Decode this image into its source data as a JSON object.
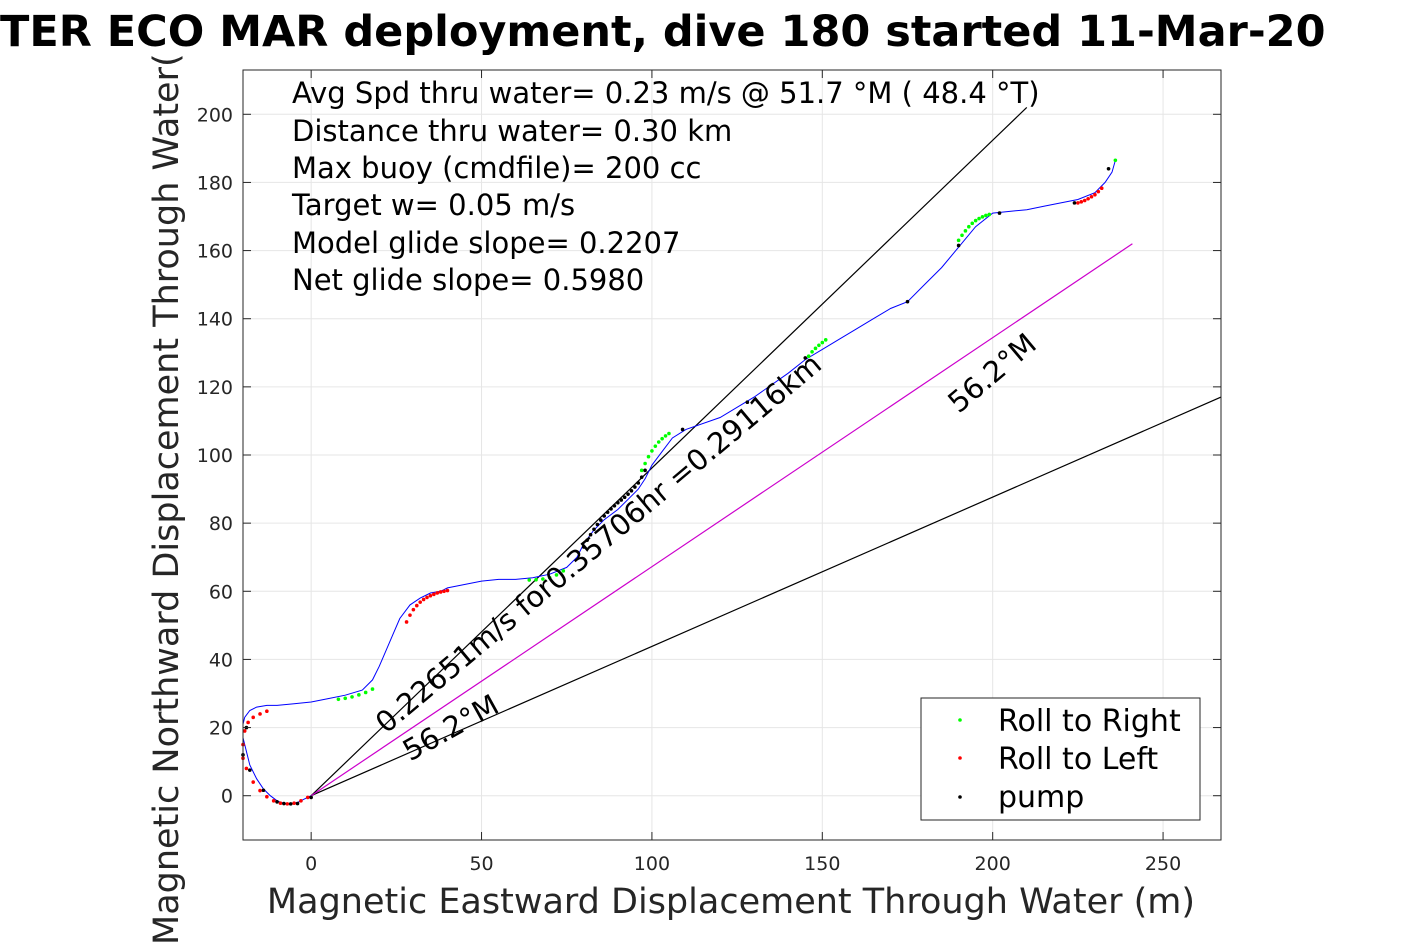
{
  "chart_data": {
    "type": "line",
    "title": "TER ECO MAR deployment, dive 180 started 11-Mar-20",
    "xlabel": "Magnetic Eastward Displacement Through Water (m)",
    "ylabel": "Magnetic Northward Displacement Through Water(",
    "xlim": [
      -20,
      267
    ],
    "ylim": [
      -13,
      213
    ],
    "xticks": [
      0,
      50,
      100,
      150,
      200,
      250
    ],
    "yticks": [
      0,
      20,
      40,
      60,
      80,
      100,
      120,
      140,
      160,
      180,
      200
    ],
    "grid": true,
    "box": true,
    "stats_lines": [
      "Avg Spd thru water=  0.23 m/s @  51.7 °M ( 48.4 °T)",
      "Distance thru water=  0.30 km",
      "Max buoy (cmdfile)= 200 cc",
      "Target w= 0.05 m/s",
      "Model glide slope= 0.2207",
      "Net glide slope= 0.5980"
    ],
    "annotations": [
      {
        "text": "0.22651m/s for0.35706hr =0.29116km",
        "x": 22,
        "y": 18,
        "angle_deg": 40
      },
      {
        "text": "56.2°M",
        "x": 29,
        "y": 10,
        "angle_deg": 29
      },
      {
        "text": "56.2°M",
        "x": 190,
        "y": 112,
        "angle_deg": 40
      }
    ],
    "reference_lines": [
      {
        "name": "track heading",
        "color": "#000000",
        "x": [
          0,
          210
        ],
        "y": [
          0,
          202
        ]
      },
      {
        "name": "net displacement",
        "color": "#000000",
        "x": [
          0,
          267
        ],
        "y": [
          0,
          117
        ]
      },
      {
        "name": "heading 56.2°M",
        "color": "#cc00cc",
        "x": [
          0,
          241
        ],
        "y": [
          0,
          162
        ]
      }
    ],
    "series": [
      {
        "role": "track",
        "color": "#0000ff",
        "x": [
          0,
          -2,
          -4,
          -6,
          -8,
          -10,
          -12,
          -14,
          -16,
          -18,
          -19,
          -20,
          -20,
          -19.5,
          -18,
          -16,
          -13,
          -10,
          -5,
          0,
          5,
          10,
          15,
          18,
          20,
          23,
          26,
          29,
          32,
          35,
          38,
          40,
          45,
          50,
          55,
          60,
          65,
          70,
          75,
          78,
          80,
          83,
          86,
          90,
          93,
          96,
          98,
          100,
          103,
          106,
          110,
          120,
          130,
          140,
          145,
          150,
          155,
          160,
          165,
          170,
          175,
          180,
          185,
          190,
          195,
          200,
          205,
          210,
          215,
          220,
          225,
          230,
          233,
          235,
          236
        ],
        "y": [
          0,
          -1,
          -2,
          -2.3,
          -2.3,
          -1.5,
          0,
          2,
          5,
          9,
          13,
          17,
          21,
          23,
          25,
          26,
          26.5,
          26.5,
          27,
          27.5,
          28.5,
          29.5,
          31,
          34,
          38,
          45,
          52,
          56,
          58,
          59.5,
          60,
          61,
          62,
          63,
          63.5,
          63.5,
          64,
          65,
          67,
          70,
          74,
          78,
          81,
          84,
          87,
          90,
          93,
          97,
          101,
          105,
          107.5,
          111,
          117,
          124,
          128,
          131,
          134,
          137,
          140,
          143,
          145,
          150,
          155,
          161,
          167,
          171,
          171.5,
          172,
          173,
          174,
          175,
          177,
          180,
          183,
          186.5
        ]
      },
      {
        "role": "roll-right",
        "name": "Roll to Right",
        "color": "#00ff00",
        "x": [
          8,
          10,
          12,
          14,
          16,
          18,
          64,
          66,
          68,
          70,
          72,
          74,
          97,
          98,
          99,
          100,
          101,
          102,
          103,
          104,
          105,
          146,
          147,
          148,
          149,
          150,
          151,
          190,
          191,
          192,
          193,
          194,
          195,
          196,
          197,
          198,
          199,
          236
        ],
        "y": [
          28.3,
          28.6,
          29.0,
          29.6,
          30.3,
          31.3,
          63.3,
          63.4,
          63.6,
          64.0,
          64.8,
          66.0,
          95.5,
          97.5,
          99.5,
          101.2,
          102.6,
          103.8,
          104.8,
          105.6,
          106.3,
          129,
          130.3,
          131.3,
          132.2,
          133,
          133.8,
          163,
          164.5,
          165.8,
          167,
          168,
          168.8,
          169.4,
          169.9,
          170.3,
          170.6,
          186.5
        ]
      },
      {
        "role": "roll-left",
        "name": "Roll to Left",
        "color": "#ff0000",
        "x": [
          -1,
          -3,
          -5,
          -7,
          -9,
          -11,
          -13,
          -15,
          -17,
          -19,
          -20,
          -20,
          -19.5,
          -18.5,
          -17,
          -15,
          -13,
          28,
          29,
          30,
          31,
          32,
          33,
          34,
          35,
          36,
          37,
          38,
          39,
          40,
          225,
          226,
          227,
          228,
          229,
          230,
          231,
          232
        ],
        "y": [
          -0.5,
          -1.5,
          -2.2,
          -2.4,
          -2.2,
          -1.5,
          -0.3,
          1.5,
          4,
          8,
          11,
          15,
          19,
          21.5,
          23,
          24,
          24.8,
          51,
          53,
          54.6,
          55.8,
          56.8,
          57.6,
          58.2,
          58.7,
          59.1,
          59.5,
          59.8,
          60,
          60.2,
          174,
          174.3,
          174.7,
          175.2,
          175.8,
          176.4,
          177.3,
          178.3
        ]
      },
      {
        "role": "pump",
        "name": "pump",
        "color": "#000000",
        "x": [
          0,
          -4,
          -6,
          -8,
          -10,
          -14,
          -18,
          -20,
          -19,
          80,
          81,
          82,
          83,
          84,
          85,
          86,
          87,
          88,
          89,
          90,
          91,
          92,
          93,
          94,
          95,
          96,
          97,
          98,
          109,
          128,
          145,
          175,
          190,
          202,
          224,
          234
        ],
        "y": [
          -0.5,
          -2.3,
          -2.4,
          -2.3,
          -1.8,
          1.6,
          7.5,
          12,
          20,
          73,
          75,
          76.6,
          78.2,
          79.6,
          80.9,
          82.1,
          83.2,
          84.2,
          85.1,
          86.0,
          86.8,
          87.6,
          88.5,
          89.5,
          90.6,
          91.8,
          93.5,
          95.5,
          107.5,
          115.5,
          128.5,
          145,
          161.5,
          171,
          174,
          184
        ]
      }
    ],
    "legend": {
      "position": "bottom-right",
      "entries": [
        {
          "label": "Roll to Right",
          "color": "#00ff00"
        },
        {
          "label": "Roll to Left",
          "color": "#ff0000"
        },
        {
          "label": "pump",
          "color": "#000000"
        }
      ]
    }
  }
}
